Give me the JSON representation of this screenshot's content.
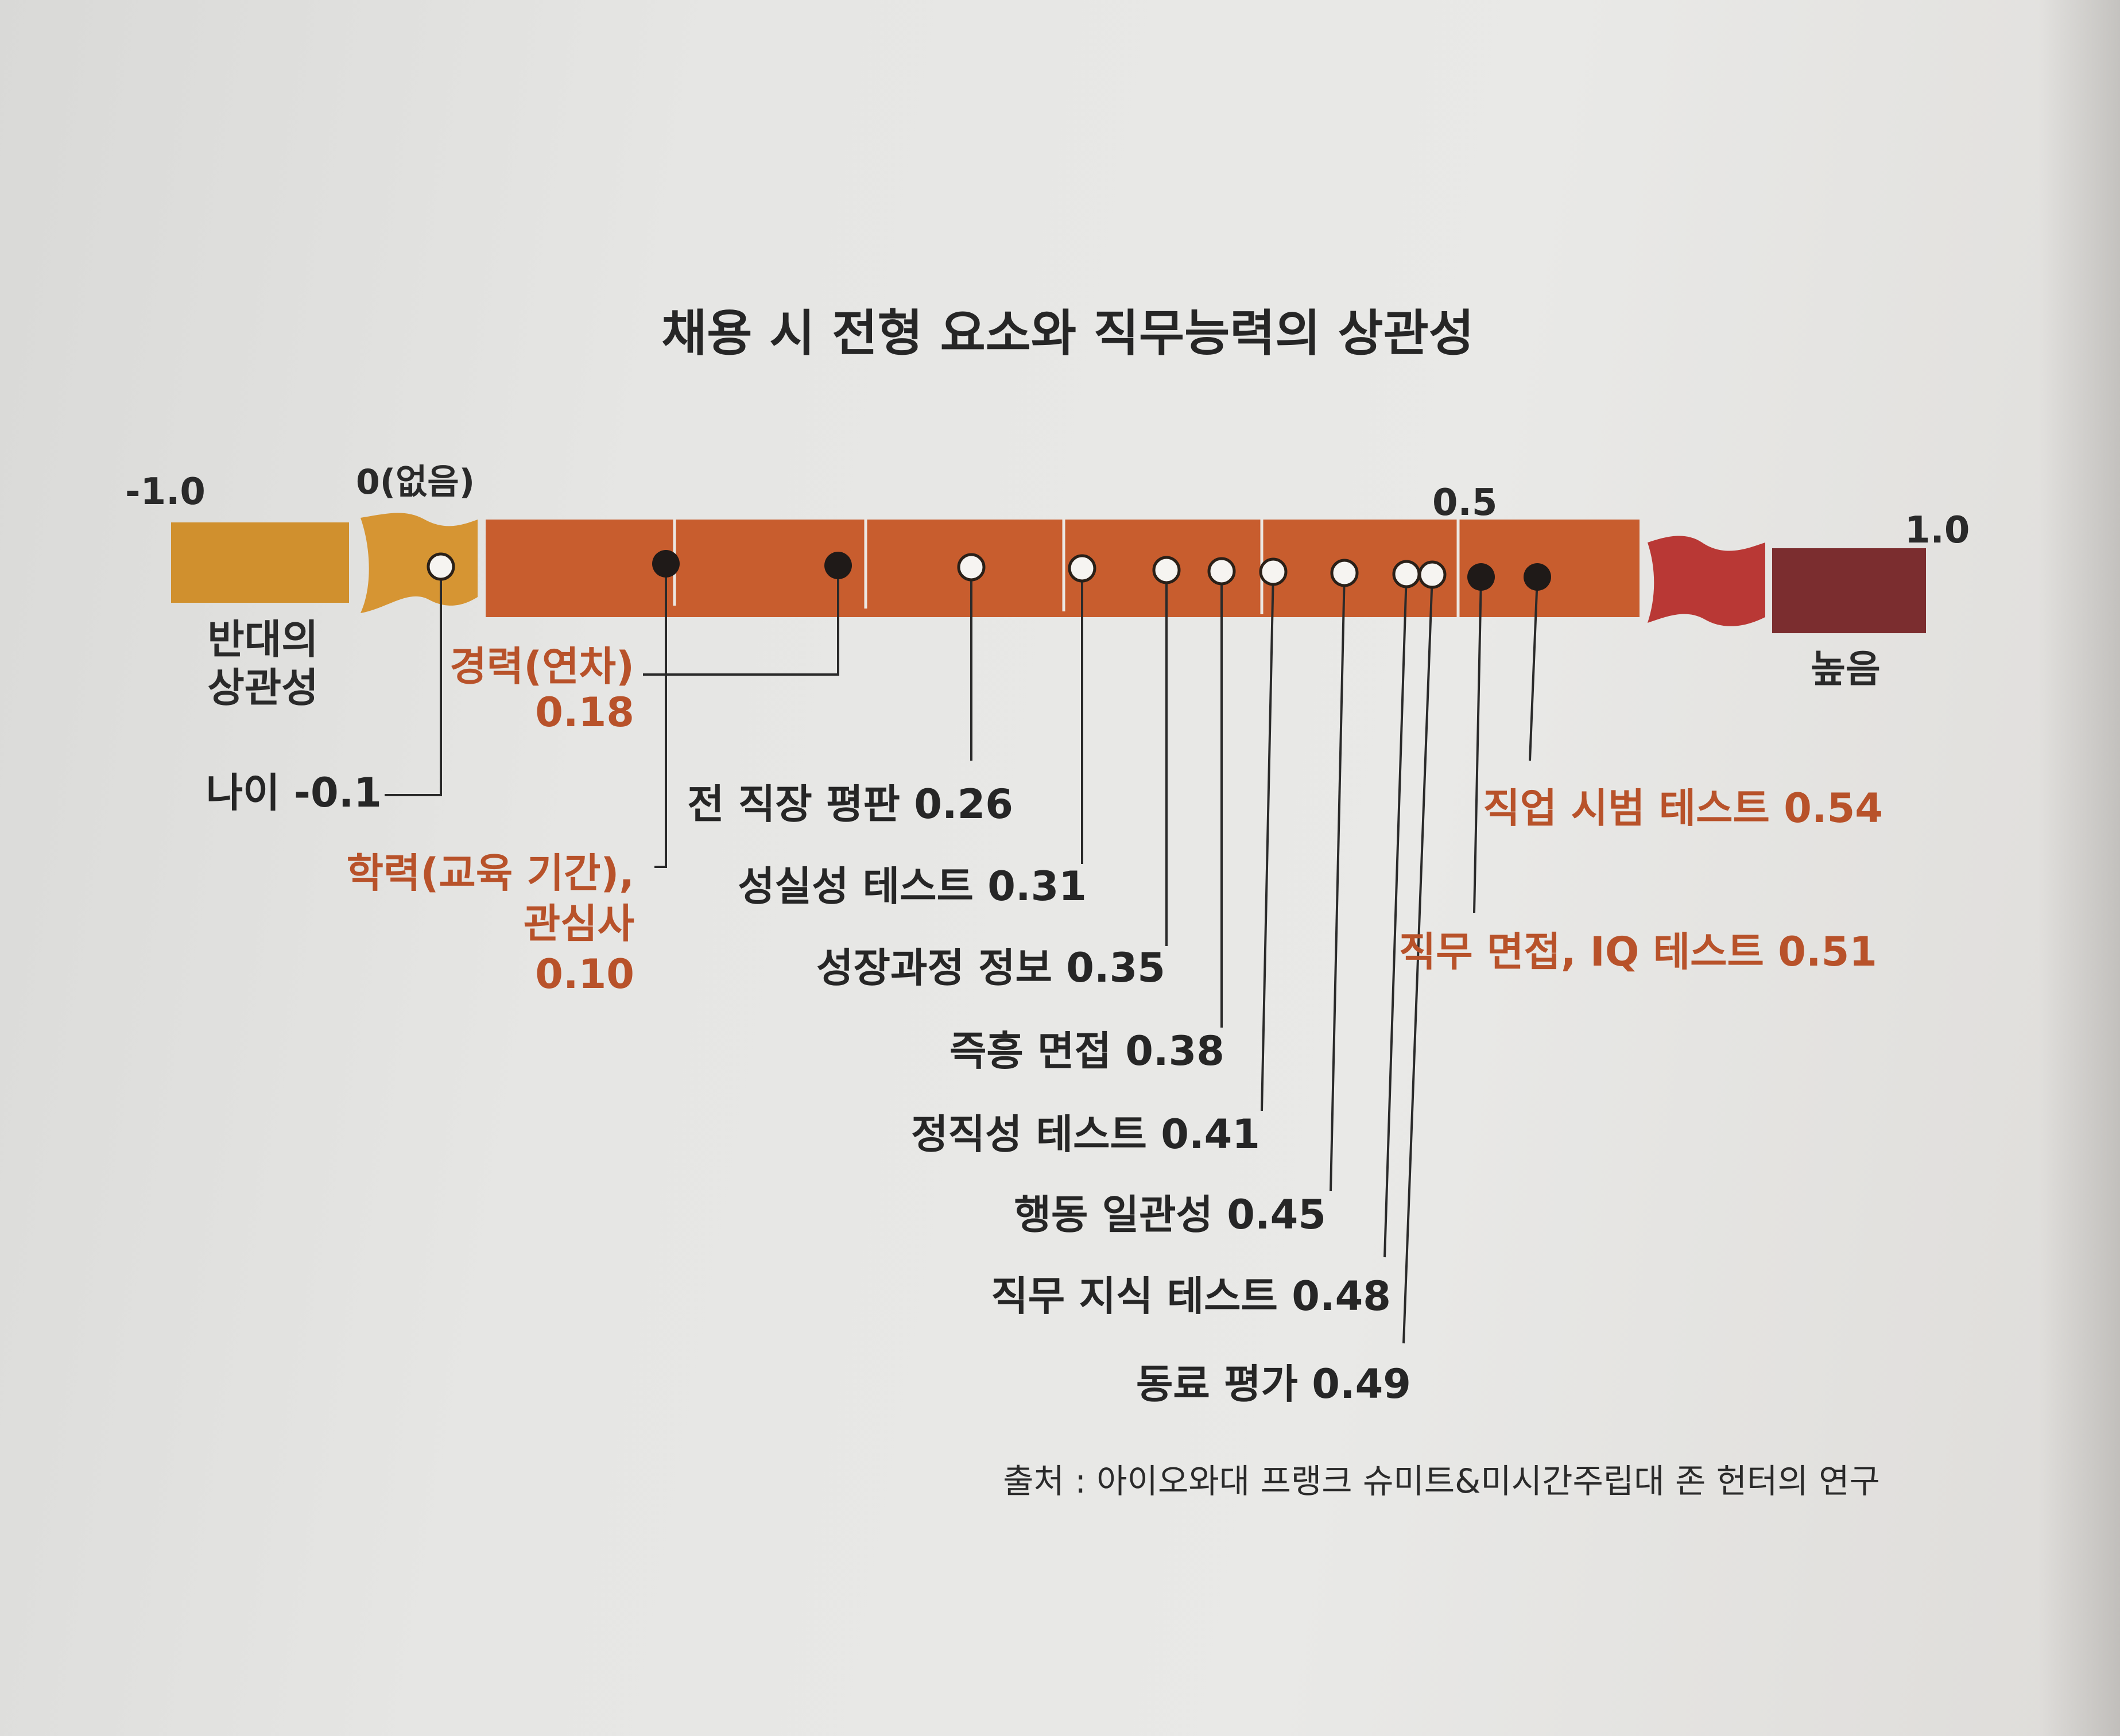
{
  "chart_data": {
    "type": "scatter",
    "title": "채용 시 전형 요소와 직무능력의 상관성",
    "axis": {
      "ticks": [
        "-1.0",
        "0(없음)",
        "0.5",
        "1.0"
      ],
      "low_label": [
        "반대의",
        "상관성"
      ],
      "high_label": "높음",
      "range": [
        -1.0,
        1.0
      ]
    },
    "points": [
      {
        "name": "나이",
        "value": -0.1,
        "display": "나이 -0.1",
        "marker": "open",
        "highlight": false
      },
      {
        "name": "학력(교육 기간), 관심사",
        "value": 0.1,
        "lines": [
          "학력(교육 기간),",
          "관심사",
          "0.10"
        ],
        "marker": "filled",
        "highlight": true
      },
      {
        "name": "경력(연차)",
        "value": 0.18,
        "lines": [
          "경력(연차)",
          "0.18"
        ],
        "marker": "filled",
        "highlight": true
      },
      {
        "name": "전 직장 평판",
        "value": 0.26,
        "display": "전 직장 평판 0.26",
        "marker": "open",
        "highlight": false
      },
      {
        "name": "성실성 테스트",
        "value": 0.31,
        "display": "성실성 테스트 0.31",
        "marker": "open",
        "highlight": false
      },
      {
        "name": "성장과정 정보",
        "value": 0.35,
        "display": "성장과정 정보 0.35",
        "marker": "open",
        "highlight": false
      },
      {
        "name": "즉흥 면접",
        "value": 0.38,
        "display": "즉흥 면접 0.38",
        "marker": "open",
        "highlight": false
      },
      {
        "name": "정직성 테스트",
        "value": 0.41,
        "display": "정직성 테스트 0.41",
        "marker": "open",
        "highlight": false
      },
      {
        "name": "행동 일관성",
        "value": 0.45,
        "display": "행동 일관성 0.45",
        "marker": "open",
        "highlight": false
      },
      {
        "name": "직무 지식 테스트",
        "value": 0.48,
        "display": "직무 지식 테스트 0.48",
        "marker": "open",
        "highlight": false
      },
      {
        "name": "동료 평가",
        "value": 0.49,
        "display": "동료 평가 0.49",
        "marker": "open",
        "highlight": false
      },
      {
        "name": "직무 면접, IQ 테스트",
        "value": 0.51,
        "display": "직무 면접, IQ 테스트 0.51",
        "marker": "filled",
        "highlight": true
      },
      {
        "name": "직업 시범 테스트",
        "value": 0.54,
        "display": "직업 시범 테스트 0.54",
        "marker": "filled",
        "highlight": true
      }
    ],
    "source": "출처 : 아이오와대 프랭크 슈미트&미시간주립대 존 헌터의 연구",
    "colors": {
      "negative_segment": "#d0902e",
      "zero_segment": "#d69533",
      "main_bar": "#c85d2e",
      "high_break": "#b93835",
      "high_segment": "#7b2d2f",
      "highlight_text": "#b8522a",
      "text": "#262626",
      "leader": "#2a2a2a"
    }
  }
}
